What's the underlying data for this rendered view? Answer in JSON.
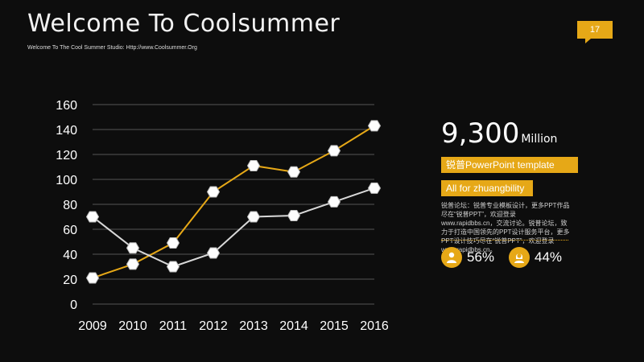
{
  "header": {
    "title": "Welcome To Coolsummer",
    "subtitle": "Welcome To The Cool Summer Studio: Http://www.Coolsummer.Org",
    "page_number": "17"
  },
  "side": {
    "big_number": "9,300",
    "big_unit": "Million",
    "tag1": "锐普PowerPoint template",
    "tag2": "All for zhuangbility",
    "desc": "锐普论坛：锐普专业模板设计，更多PPT作品尽在“锐普PPT”，欢迎登录www.rapidbbs.cn，交流讨论。锐普论坛，致力于打造中国领先的PPT设计服务平台，更多PPT设计技巧尽在“锐普PPT”，欢迎登录 www.rapidbbs.cn。",
    "stat1": "56%",
    "stat2": "44%",
    "stat_icon_1": "person-male-icon",
    "stat_icon_2": "person-female-icon"
  },
  "colors": {
    "background": "#0d0d0d",
    "accent": "#e6a817",
    "series_gray": "#d8d8d8",
    "grid": "#555555"
  },
  "chart_data": {
    "type": "line",
    "x": [
      "2009",
      "2010",
      "2011",
      "2012",
      "2013",
      "2014",
      "2015",
      "2016"
    ],
    "ylim": [
      0,
      160
    ],
    "yticks": [
      0,
      20,
      40,
      60,
      80,
      100,
      120,
      140,
      160
    ],
    "grid": true,
    "series": [
      {
        "color": "#e6a817",
        "values": [
          21,
          32,
          49,
          90,
          111,
          106,
          123,
          143
        ]
      },
      {
        "color": "#d8d8d8",
        "values": [
          70,
          45,
          30,
          41,
          70,
          71,
          82,
          93
        ]
      }
    ]
  }
}
